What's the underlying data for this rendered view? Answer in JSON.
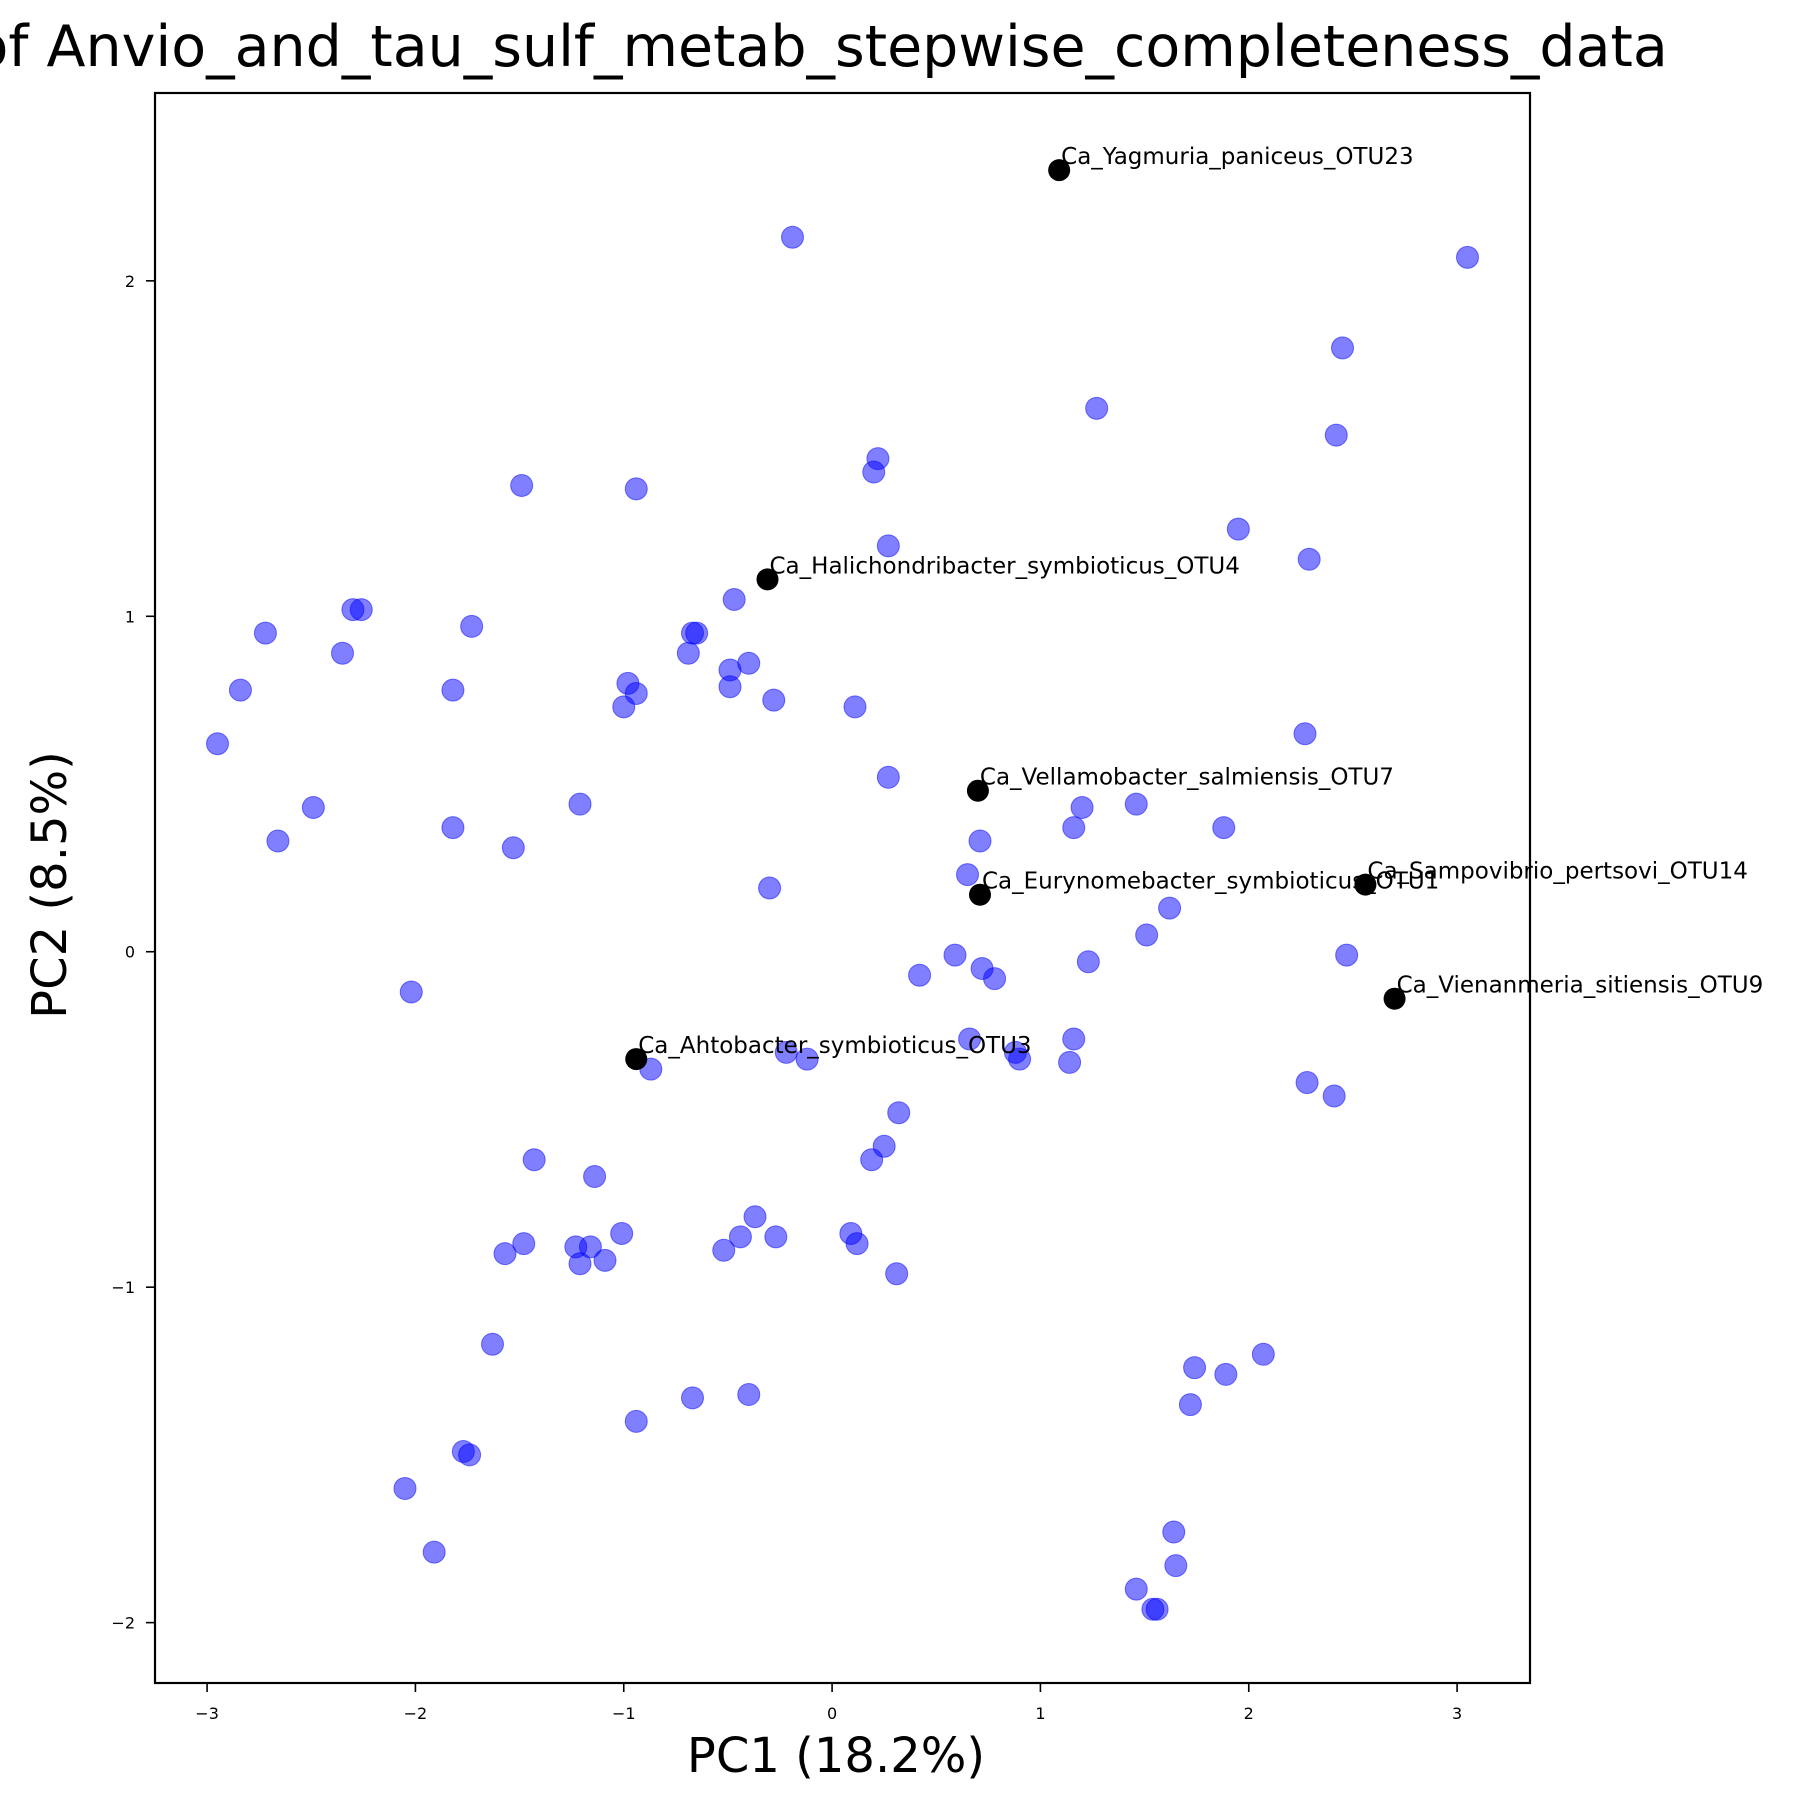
{
  "chart_data": {
    "type": "scatter",
    "title": "PCA of Anvio_and_tau_sulf_metab_stepwise_completeness_data",
    "xlabel": "PC1 (18.2%)",
    "ylabel": "PC2 (8.5%)",
    "xlim": [
      -3.25,
      3.35
    ],
    "ylim": [
      -2.18,
      2.56
    ],
    "xticks": [
      -3,
      -2,
      -1,
      0,
      1,
      2,
      3
    ],
    "yticks": [
      -2,
      -1,
      0,
      1,
      2
    ],
    "xtick_labels": [
      "−3",
      "−2",
      "−1",
      "0",
      "1",
      "2",
      "3"
    ],
    "ytick_labels": [
      "−2",
      "−1",
      "0",
      "1",
      "2"
    ],
    "grid": false,
    "colors": {
      "points": "#0000ff",
      "highlight": "#000000"
    },
    "series": [
      {
        "points": [
          [
            -2.95,
            0.62
          ],
          [
            -2.84,
            0.78
          ],
          [
            -2.72,
            0.95
          ],
          [
            -2.66,
            0.33
          ],
          [
            -2.49,
            0.43
          ],
          [
            -2.35,
            0.89
          ],
          [
            -2.3,
            1.02
          ],
          [
            -2.26,
            1.02
          ],
          [
            -2.02,
            -0.12
          ],
          [
            -1.82,
            0.78
          ],
          [
            -1.82,
            0.37
          ],
          [
            -1.73,
            0.97
          ],
          [
            -1.53,
            0.31
          ],
          [
            -1.49,
            1.39
          ],
          [
            -1.21,
            0.44
          ],
          [
            -1.0,
            0.73
          ],
          [
            -0.98,
            0.8
          ],
          [
            -0.94,
            1.38
          ],
          [
            -0.94,
            0.77
          ],
          [
            -0.87,
            -0.35
          ],
          [
            -0.69,
            0.89
          ],
          [
            -0.67,
            0.95
          ],
          [
            -0.65,
            0.95
          ],
          [
            -0.49,
            0.84
          ],
          [
            -0.49,
            0.79
          ],
          [
            -0.47,
            1.05
          ],
          [
            -0.4,
            0.86
          ],
          [
            -0.3,
            0.19
          ],
          [
            -0.28,
            0.75
          ],
          [
            -0.19,
            2.13
          ],
          [
            -0.22,
            -0.3
          ],
          [
            -0.12,
            -0.32
          ],
          [
            0.11,
            0.73
          ],
          [
            0.2,
            1.43
          ],
          [
            0.22,
            1.47
          ],
          [
            0.27,
            1.21
          ],
          [
            0.27,
            0.52
          ],
          [
            0.42,
            -0.07
          ],
          [
            0.59,
            -0.01
          ],
          [
            0.65,
            0.23
          ],
          [
            0.71,
            0.33
          ],
          [
            0.72,
            -0.05
          ],
          [
            0.78,
            -0.08
          ],
          [
            0.66,
            -0.26
          ],
          [
            0.88,
            -0.3
          ],
          [
            0.9,
            -0.32
          ],
          [
            1.14,
            -0.33
          ],
          [
            1.16,
            -0.26
          ],
          [
            1.16,
            0.37
          ],
          [
            1.2,
            0.43
          ],
          [
            1.23,
            -0.03
          ],
          [
            1.27,
            1.62
          ],
          [
            1.46,
            0.44
          ],
          [
            1.51,
            0.05
          ],
          [
            1.62,
            0.13
          ],
          [
            1.88,
            0.37
          ],
          [
            1.95,
            1.26
          ],
          [
            2.27,
            0.65
          ],
          [
            2.29,
            1.17
          ],
          [
            2.42,
            1.54
          ],
          [
            2.45,
            1.8
          ],
          [
            2.47,
            -0.01
          ],
          [
            3.05,
            2.07
          ],
          [
            2.28,
            -0.39
          ],
          [
            2.41,
            -0.43
          ],
          [
            0.32,
            -0.48
          ],
          [
            0.25,
            -0.58
          ],
          [
            0.19,
            -0.62
          ],
          [
            -1.43,
            -0.62
          ],
          [
            -1.14,
            -0.67
          ],
          [
            -1.01,
            -0.84
          ],
          [
            -0.37,
            -0.79
          ],
          [
            -0.44,
            -0.85
          ],
          [
            -0.27,
            -0.85
          ],
          [
            -0.52,
            -0.89
          ],
          [
            0.09,
            -0.84
          ],
          [
            0.12,
            -0.87
          ],
          [
            0.31,
            -0.96
          ],
          [
            -1.48,
            -0.87
          ],
          [
            -1.57,
            -0.9
          ],
          [
            -1.23,
            -0.88
          ],
          [
            -1.16,
            -0.88
          ],
          [
            -1.21,
            -0.93
          ],
          [
            -1.09,
            -0.92
          ],
          [
            -1.63,
            -1.17
          ],
          [
            -0.67,
            -1.33
          ],
          [
            -0.4,
            -1.32
          ],
          [
            -0.94,
            -1.4
          ],
          [
            -1.77,
            -1.49
          ],
          [
            -1.74,
            -1.5
          ],
          [
            -2.05,
            -1.6
          ],
          [
            -1.91,
            -1.79
          ],
          [
            1.74,
            -1.24
          ],
          [
            1.89,
            -1.26
          ],
          [
            2.07,
            -1.2
          ],
          [
            1.72,
            -1.35
          ],
          [
            1.64,
            -1.73
          ],
          [
            1.65,
            -1.83
          ],
          [
            1.46,
            -1.9
          ],
          [
            1.54,
            -1.96
          ],
          [
            1.56,
            -1.96
          ]
        ]
      },
      {
        "labeled_points": [
          {
            "label": "Ca_Yagmuria_paniceus_OTU23",
            "x": 1.09,
            "y": 2.33
          },
          {
            "label": "Ca_Halichondribacter_symbioticus_OTU4",
            "x": -0.31,
            "y": 1.11
          },
          {
            "label": "Ca_Vellamobacter_salmiensis_OTU7",
            "x": 0.7,
            "y": 0.48
          },
          {
            "label": "Ca_Eurynomebacter_symbioticus_OTU1",
            "x": 0.71,
            "y": 0.17
          },
          {
            "label": "Ca_Sampovibrio_pertsovi_OTU14",
            "x": 2.56,
            "y": 0.2
          },
          {
            "label": "Ca_Vienanmeria_sitiensis_OTU9",
            "x": 2.7,
            "y": -0.14
          },
          {
            "label": "Ca_Ahtobacter_symbioticus_OTU3",
            "x": -0.94,
            "y": -0.32
          }
        ]
      }
    ]
  }
}
